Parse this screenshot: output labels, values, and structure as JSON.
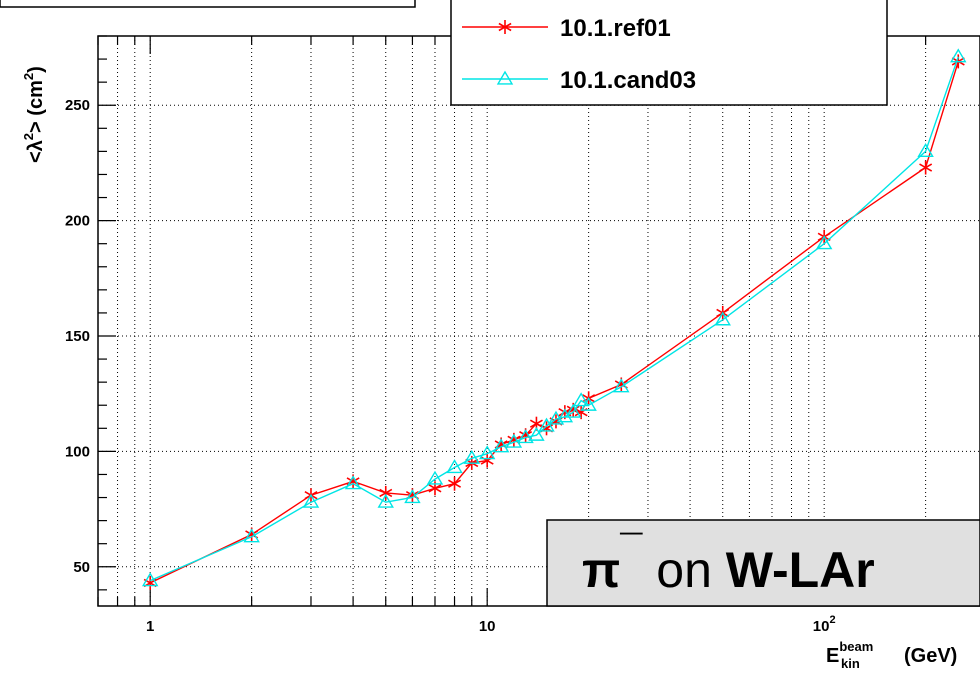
{
  "chart_data": {
    "type": "line",
    "title": "",
    "xlabel": "E_kin^beam (GeV)",
    "xlabel_parts": {
      "main": "E",
      "sup": "beam",
      "sub": "kin",
      "unit": "(GeV)"
    },
    "ylabel": "<λ²> (cm²)",
    "ylabel_parts": {
      "pre": "<λ",
      "sup": "2",
      "mid": "> (cm",
      "sup2": "2",
      "post": ")"
    },
    "xscale": "log",
    "xlim": [
      0.7,
      290
    ],
    "ylim": [
      33,
      280
    ],
    "grid": true,
    "legend_position": "top-center",
    "x_ticks": [
      {
        "value": 1,
        "label": "1"
      },
      {
        "value": 10,
        "label": "10"
      },
      {
        "value": 100,
        "label": "10",
        "sup": "2"
      }
    ],
    "y_ticks": [
      50,
      100,
      150,
      200,
      250
    ],
    "annotation": {
      "pi": "π",
      "minus": "¯",
      "on": " on ",
      "target": "W-LAr"
    },
    "series": [
      {
        "name": "10.1.ref01",
        "color": "#ff0000",
        "marker": "asterisk",
        "x": [
          1,
          2,
          3,
          4,
          5,
          6,
          7,
          8,
          9,
          10,
          11,
          12,
          13,
          14,
          15,
          16,
          17,
          18,
          19,
          20,
          25,
          50,
          100,
          200,
          250
        ],
        "y": [
          43,
          64,
          81,
          87,
          82,
          81,
          84,
          86,
          95,
          96,
          103,
          105,
          107,
          112,
          110,
          113,
          117,
          118,
          117,
          123,
          129,
          160,
          193,
          223,
          269
        ]
      },
      {
        "name": "10.1.cand03",
        "color": "#00e5e5",
        "marker": "triangle",
        "x": [
          1,
          2,
          3,
          4,
          5,
          6,
          7,
          8,
          9,
          10,
          11,
          12,
          13,
          14,
          15,
          16,
          17,
          18,
          19,
          20,
          25,
          50,
          100,
          200,
          250
        ],
        "y": [
          44,
          63,
          78,
          86,
          78,
          80,
          88,
          93,
          97,
          99,
          102,
          104,
          106,
          107,
          111,
          114,
          115,
          117,
          122,
          120,
          128,
          157,
          190,
          230,
          271
        ]
      }
    ]
  }
}
